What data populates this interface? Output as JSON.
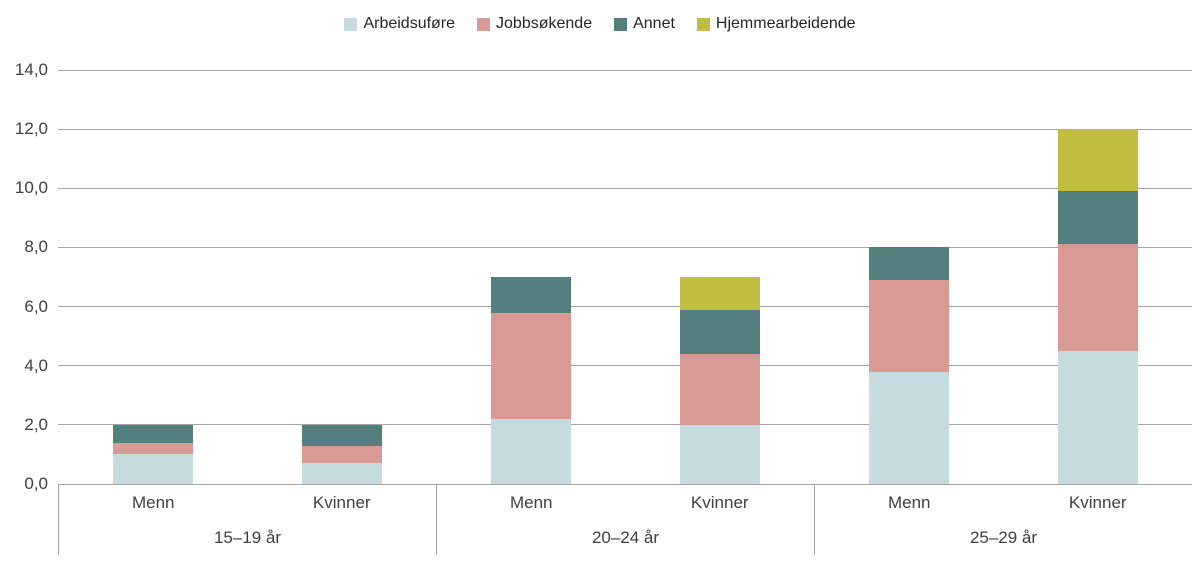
{
  "chart_data": {
    "type": "bar",
    "stacked": true,
    "title": "",
    "xlabel": "",
    "ylabel": "",
    "legend_position": "top",
    "grid": true,
    "groups": [
      "15–19 år",
      "20–24 år",
      "25–29 år"
    ],
    "categories": [
      "Menn",
      "Kvinner",
      "Menn",
      "Kvinner",
      "Menn",
      "Kvinner"
    ],
    "series": [
      {
        "name": "Arbeidsuføre",
        "color": "#c6dbe0",
        "values": [
          1.0,
          0.7,
          2.2,
          2.0,
          3.8,
          4.5
        ]
      },
      {
        "name": "Jobbsøkende",
        "color": "#d99a94",
        "values": [
          0.4,
          0.6,
          3.6,
          2.4,
          3.1,
          3.6
        ]
      },
      {
        "name": "Annet",
        "color": "#53807e",
        "values": [
          0.6,
          0.7,
          1.2,
          1.5,
          1.1,
          1.8
        ]
      },
      {
        "name": "Hjemmearbeidende",
        "color": "#c1bd41",
        "values": [
          0.0,
          0.0,
          0.0,
          1.1,
          0.0,
          2.1
        ]
      }
    ],
    "ylim": [
      0,
      14
    ],
    "ytick_step": 2,
    "ytick_labels": [
      "0,0",
      "2,0",
      "4,0",
      "6,0",
      "8,0",
      "10,0",
      "12,0",
      "14,0"
    ]
  }
}
